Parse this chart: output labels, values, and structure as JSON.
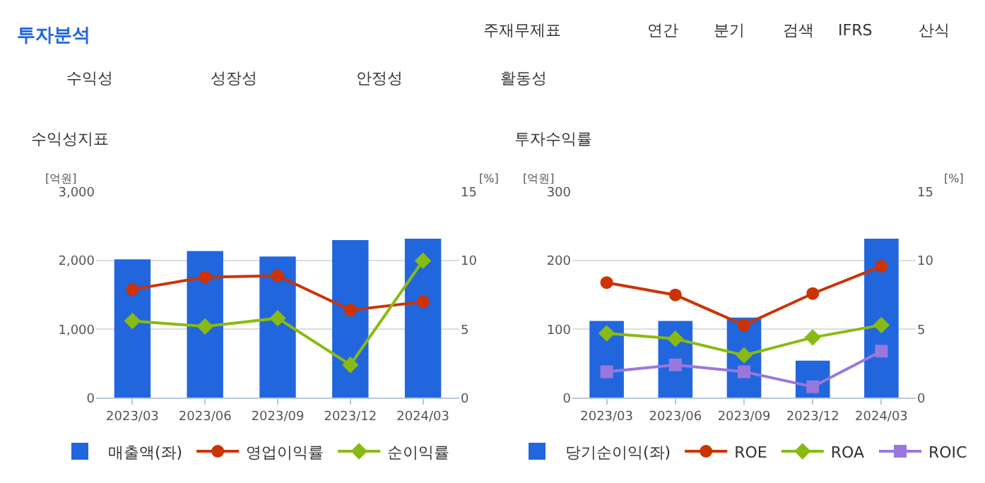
{
  "chart_data": [
    {
      "type": "other",
      "title": "투자분석",
      "annotations": [
        "주재무제표",
        "연간",
        "분기",
        "검색",
        "IFRS",
        "산식",
        "수익성",
        "성장성",
        "안정성",
        "활동성"
      ]
    },
    {
      "type": "bar",
      "title": "수익성지표",
      "ylabel": "[억원]",
      "y2label": "[%]",
      "categories": [
        "2023/03",
        "2023/06",
        "2023/09",
        "2023/12",
        "2024/03"
      ],
      "series": [
        {
          "name": "매출액(좌)",
          "type": "bar",
          "color": "#2266dd",
          "values": [
            2020,
            2140,
            2060,
            2300,
            2320
          ]
        },
        {
          "name": "영업이익률",
          "type": "line",
          "axis": "y2",
          "marker": "circle",
          "color": "#cc3300",
          "values": [
            7.9,
            8.8,
            8.9,
            6.4,
            7.0
          ]
        },
        {
          "name": "순이익률",
          "type": "line",
          "axis": "y2",
          "marker": "diamond",
          "color": "#88bb11",
          "values": [
            5.6,
            5.2,
            5.8,
            2.4,
            10.0
          ]
        }
      ],
      "ylim": [
        0,
        3000
      ],
      "yticks": [
        0,
        {
          "value": 1000,
          "label": "1,000"
        },
        {
          "value": 2000,
          "label": "2,000"
        },
        {
          "value": 3000,
          "label": "3,000"
        }
      ],
      "y2lim": [
        0,
        15
      ],
      "y2ticks": [
        0,
        5,
        10,
        15
      ],
      "grid": "y",
      "legend": "bottom"
    },
    {
      "type": "bar",
      "title": "투자수익률",
      "ylabel": "[억원]",
      "y2label": "[%]",
      "categories": [
        "2023/03",
        "2023/06",
        "2023/09",
        "2023/12",
        "2024/03"
      ],
      "series": [
        {
          "name": "당기순이익(좌)",
          "type": "bar",
          "color": "#2266dd",
          "values": [
            112,
            112,
            117,
            54,
            232
          ]
        },
        {
          "name": "ROE",
          "type": "line",
          "axis": "y2",
          "marker": "circle",
          "color": "#cc3300",
          "values": [
            8.4,
            7.5,
            5.3,
            7.6,
            9.6
          ]
        },
        {
          "name": "ROA",
          "type": "line",
          "axis": "y2",
          "marker": "diamond",
          "color": "#88bb11",
          "values": [
            4.7,
            4.3,
            3.1,
            4.4,
            5.3
          ]
        },
        {
          "name": "ROIC",
          "type": "line",
          "axis": "y2",
          "marker": "square",
          "color": "#9977dd",
          "values": [
            1.9,
            2.4,
            1.9,
            0.8,
            3.4
          ]
        }
      ],
      "ylim": [
        0,
        300
      ],
      "yticks": [
        0,
        100,
        200,
        300
      ],
      "y2lim": [
        0,
        15
      ],
      "y2ticks": [
        0,
        5,
        10,
        15
      ],
      "grid": "y",
      "legend": "bottom"
    }
  ]
}
